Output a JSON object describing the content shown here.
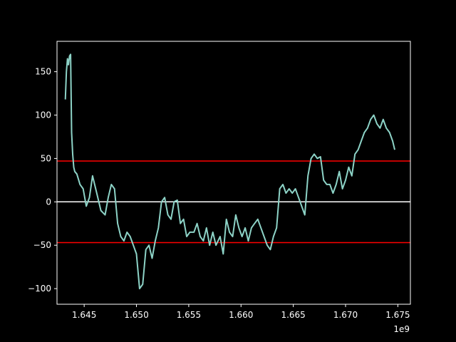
{
  "chart_data": {
    "type": "line",
    "title": "",
    "xlabel": "",
    "ylabel": "",
    "x_tick_labels": [
      "1.645",
      "1.650",
      "1.655",
      "1.660",
      "1.665",
      "1.670",
      "1.675"
    ],
    "x_ticks": [
      1.645,
      1.65,
      1.655,
      1.66,
      1.665,
      1.67,
      1.675
    ],
    "x_offset_label": "1e9",
    "y_tick_labels": [
      "−100",
      "−50",
      "0",
      "50",
      "100",
      "150"
    ],
    "y_ticks": [
      -100,
      -50,
      0,
      50,
      100,
      150
    ],
    "xlim": [
      1.6424,
      1.6762
    ],
    "ylim": [
      -118,
      185
    ],
    "grid": false,
    "colors": {
      "background": "#000000",
      "axes": "#ffffff",
      "series": "#8dd3c7",
      "upper_band": "#ff0000",
      "lower_band": "#ff0000",
      "zero_line": "#ffffff"
    },
    "horizontal_lines": [
      {
        "y": 47,
        "color": "#ff0000"
      },
      {
        "y": 0,
        "color": "#ffffff"
      },
      {
        "y": -47,
        "color": "#ff0000"
      }
    ],
    "series": [
      {
        "x": [
          1.6432,
          1.6433,
          1.6434,
          1.6435,
          1.6436,
          1.6437,
          1.6438,
          1.6439,
          1.644,
          1.6441,
          1.6443,
          1.6446,
          1.6449,
          1.6452,
          1.6455,
          1.6458,
          1.6462,
          1.6466,
          1.647,
          1.6473,
          1.6476,
          1.6479,
          1.6482,
          1.6485,
          1.6488,
          1.6491,
          1.6494,
          1.6497,
          1.65,
          1.6503,
          1.6506,
          1.6509,
          1.6512,
          1.6515,
          1.6518,
          1.6521,
          1.6524,
          1.6527,
          1.653,
          1.6533,
          1.6536,
          1.6539,
          1.6542,
          1.6545,
          1.6548,
          1.6551,
          1.6555,
          1.6558,
          1.6561,
          1.6564,
          1.6567,
          1.657,
          1.6573,
          1.6576,
          1.658,
          1.6583,
          1.6586,
          1.6589,
          1.6592,
          1.6595,
          1.6598,
          1.6601,
          1.6604,
          1.6607,
          1.661,
          1.6613,
          1.6616,
          1.6619,
          1.6622,
          1.6625,
          1.6628,
          1.6631,
          1.6634,
          1.6637,
          1.664,
          1.6643,
          1.6646,
          1.6649,
          1.6652,
          1.6655,
          1.6658,
          1.6661,
          1.6664,
          1.6667,
          1.667,
          1.6673,
          1.6676,
          1.6679,
          1.6682,
          1.6685,
          1.6688,
          1.6691,
          1.6694,
          1.6697,
          1.67,
          1.6703,
          1.6706,
          1.6709,
          1.6712,
          1.6715,
          1.6718,
          1.6721,
          1.6724,
          1.6727,
          1.673,
          1.6733,
          1.6736,
          1.6739,
          1.6742,
          1.6745,
          1.6747
        ],
        "y": [
          118,
          150,
          165,
          158,
          168,
          170,
          80,
          55,
          40,
          35,
          32,
          20,
          15,
          -5,
          5,
          30,
          10,
          -10,
          -15,
          5,
          20,
          15,
          -25,
          -40,
          -45,
          -35,
          -40,
          -50,
          -60,
          -100,
          -95,
          -55,
          -50,
          -65,
          -45,
          -30,
          0,
          5,
          -15,
          -20,
          0,
          2,
          -25,
          -20,
          -40,
          -35,
          -35,
          -25,
          -40,
          -45,
          -30,
          -50,
          -35,
          -50,
          -40,
          -60,
          -20,
          -35,
          -40,
          -15,
          -30,
          -40,
          -30,
          -45,
          -30,
          -25,
          -20,
          -30,
          -40,
          -50,
          -55,
          -40,
          -30,
          15,
          20,
          10,
          15,
          10,
          15,
          5,
          -5,
          -15,
          30,
          50,
          55,
          50,
          52,
          25,
          20,
          20,
          10,
          20,
          35,
          15,
          25,
          40,
          30,
          55,
          60,
          70,
          80,
          85,
          95,
          100,
          90,
          85,
          95,
          85,
          80,
          70,
          60
        ]
      }
    ]
  }
}
